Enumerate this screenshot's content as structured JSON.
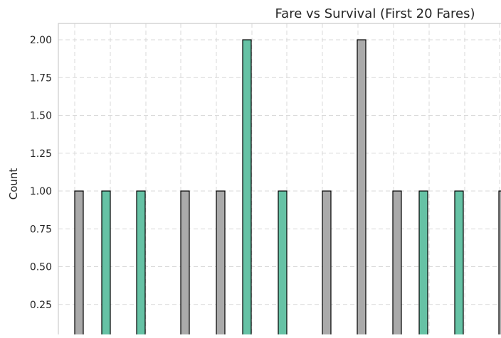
{
  "chart_data": {
    "type": "bar",
    "title": "Fare vs Survival (First 20 Fares)",
    "xlabel": "",
    "ylabel": "Count",
    "ylim": [
      0,
      2.1
    ],
    "y_ticks": [
      "0.25",
      "0.50",
      "0.75",
      "1.00",
      "1.25",
      "1.50",
      "1.75",
      "2.00"
    ],
    "grid": true,
    "colors": {
      "not_survived": "#aaaaaa",
      "survived": "#66c2a5",
      "edge": "#000000"
    },
    "bars": [
      {
        "group": "not_survived",
        "value": 1
      },
      {
        "group": "survived",
        "value": 1
      },
      {
        "group": "survived",
        "value": 1
      },
      {
        "group": "not_survived",
        "value": 1
      },
      {
        "group": "not_survived",
        "value": 1
      },
      {
        "group": "survived",
        "value": 2
      },
      {
        "group": "survived",
        "value": 1
      },
      {
        "group": "not_survived",
        "value": 1
      },
      {
        "group": "not_survived",
        "value": 2
      },
      {
        "group": "not_survived",
        "value": 1
      },
      {
        "group": "survived",
        "value": 1
      },
      {
        "group": "survived",
        "value": 1
      },
      {
        "group": "not_survived",
        "value": 1
      }
    ]
  }
}
